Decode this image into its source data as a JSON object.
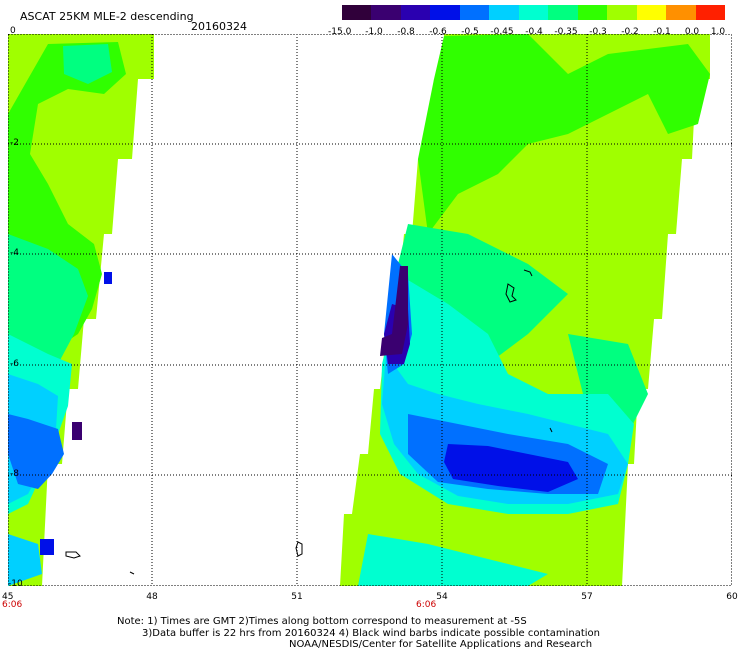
{
  "title": "ASCAT 25KM MLE-2 descending",
  "date": "20160324",
  "colorbar": {
    "labels": [
      "-15.0",
      "-1.0",
      "-0.8",
      "-0.6",
      "-0.5",
      "-0.45",
      "-0.4",
      "-0.35",
      "-0.3",
      "-0.2",
      "-0.1",
      "0.0",
      "1.0"
    ],
    "colors": [
      "#30003a",
      "#3a0070",
      "#2a00b0",
      "#0010e8",
      "#0070ff",
      "#00d0ff",
      "#00ffd0",
      "#00ff80",
      "#30ff00",
      "#a0ff00",
      "#ffff00",
      "#ff9000",
      "#ff2000"
    ]
  },
  "axes": {
    "x_ticks": [
      "45",
      "48",
      "51",
      "54",
      "57",
      "60"
    ],
    "y_ticks": [
      "0",
      "-2",
      "-4",
      "-6",
      "-8",
      "-10"
    ]
  },
  "times": [
    "6:06",
    "6:06"
  ],
  "notes": {
    "line1": "Note: 1) Times are GMT 2)Times along bottom correspond to measurement at -5S",
    "line2": "3)Data buffer is 22 hrs from 20160324 4) Black wind barbs indicate possible contamination",
    "line3": "NOAA/NESDIS/Center for Satellite Applications and Research"
  },
  "palette": {
    "lime": "#a0ff00",
    "green": "#30ff00",
    "mint": "#00ff80",
    "cyan": "#00ffd0",
    "sky": "#00d0ff",
    "blue": "#0070ff",
    "deepblue": "#0010e8",
    "indigo": "#2a00b0",
    "purple": "#3a0070"
  }
}
